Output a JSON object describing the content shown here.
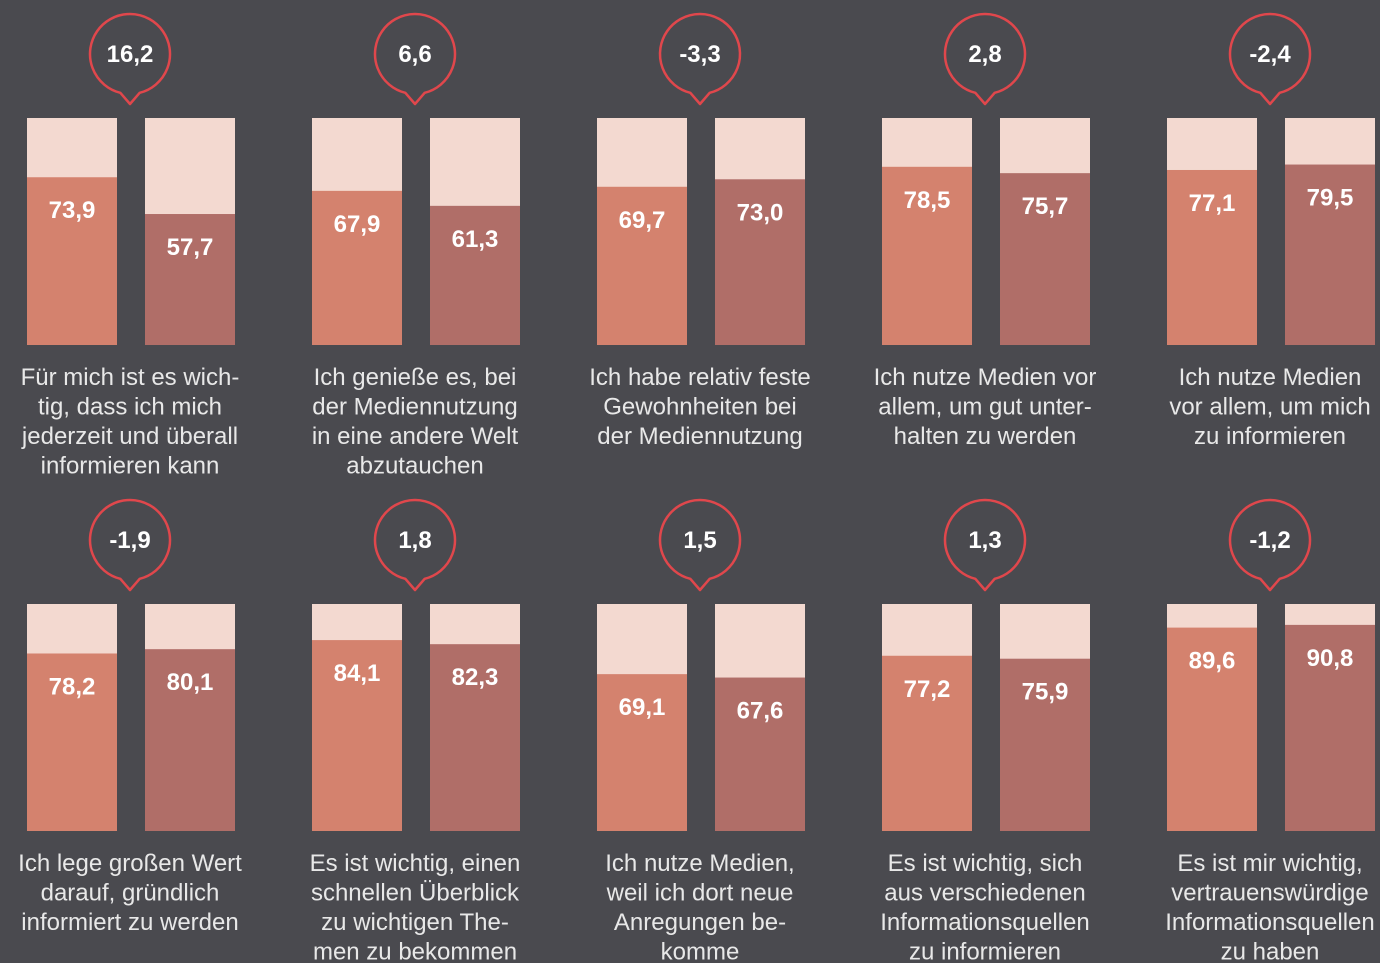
{
  "chart_data": [
    {
      "type": "bar",
      "label": [
        "Für mich ist es wich-",
        "tig, dass ich mich",
        "jederzeit und überall",
        "informieren kann"
      ],
      "values": [
        73.9,
        57.7
      ],
      "value_labels": [
        "73,9",
        "57,7"
      ],
      "difference": 16.2,
      "difference_label": "16,2",
      "colors": [
        "#d4826e",
        "#b06e68"
      ],
      "background_color": "#f3d9d0",
      "ylim": [
        0,
        100
      ]
    },
    {
      "type": "bar",
      "label": [
        "Ich genieße es, bei",
        "der Mediennutzung",
        "in eine andere Welt",
        "abzutauchen"
      ],
      "values": [
        67.9,
        61.3
      ],
      "value_labels": [
        "67,9",
        "61,3"
      ],
      "difference": 6.6,
      "difference_label": "6,6",
      "colors": [
        "#d4826e",
        "#b06e68"
      ],
      "background_color": "#f3d9d0",
      "ylim": [
        0,
        100
      ]
    },
    {
      "type": "bar",
      "label": [
        "Ich habe relativ feste",
        "Gewohnheiten bei",
        "der Mediennutzung"
      ],
      "values": [
        69.7,
        73.0
      ],
      "value_labels": [
        "69,7",
        "73,0"
      ],
      "difference": -3.3,
      "difference_label": "-3,3",
      "colors": [
        "#d4826e",
        "#b06e68"
      ],
      "background_color": "#f3d9d0",
      "ylim": [
        0,
        100
      ]
    },
    {
      "type": "bar",
      "label": [
        "Ich nutze Medien vor",
        "allem, um gut unter-",
        "halten zu werden"
      ],
      "values": [
        78.5,
        75.7
      ],
      "value_labels": [
        "78,5",
        "75,7"
      ],
      "difference": 2.8,
      "difference_label": "2,8",
      "colors": [
        "#d4826e",
        "#b06e68"
      ],
      "background_color": "#f3d9d0",
      "ylim": [
        0,
        100
      ]
    },
    {
      "type": "bar",
      "label": [
        "Ich nutze Medien",
        "vor allem, um mich",
        "zu informieren"
      ],
      "values": [
        77.1,
        79.5
      ],
      "value_labels": [
        "77,1",
        "79,5"
      ],
      "difference": -2.4,
      "difference_label": "-2,4",
      "colors": [
        "#d4826e",
        "#b06e68"
      ],
      "background_color": "#f3d9d0",
      "ylim": [
        0,
        100
      ]
    },
    {
      "type": "bar",
      "label": [
        "Ich lege großen Wert",
        "darauf, gründlich",
        "informiert zu werden"
      ],
      "values": [
        78.2,
        80.1
      ],
      "value_labels": [
        "78,2",
        "80,1"
      ],
      "difference": -1.9,
      "difference_label": "-1,9",
      "colors": [
        "#d4826e",
        "#b06e68"
      ],
      "background_color": "#f3d9d0",
      "ylim": [
        0,
        100
      ]
    },
    {
      "type": "bar",
      "label": [
        "Es ist wichtig, einen",
        "schnellen Überblick",
        "zu wichtigen The-",
        "men zu bekommen"
      ],
      "values": [
        84.1,
        82.3
      ],
      "value_labels": [
        "84,1",
        "82,3"
      ],
      "difference": 1.8,
      "difference_label": "1,8",
      "colors": [
        "#d4826e",
        "#b06e68"
      ],
      "background_color": "#f3d9d0",
      "ylim": [
        0,
        100
      ]
    },
    {
      "type": "bar",
      "label": [
        "Ich nutze Medien,",
        "weil ich dort neue",
        "Anregungen be-",
        "komme"
      ],
      "values": [
        69.1,
        67.6
      ],
      "value_labels": [
        "69,1",
        "67,6"
      ],
      "difference": 1.5,
      "difference_label": "1,5",
      "colors": [
        "#d4826e",
        "#b06e68"
      ],
      "background_color": "#f3d9d0",
      "ylim": [
        0,
        100
      ]
    },
    {
      "type": "bar",
      "label": [
        "Es ist wichtig, sich",
        "aus verschiedenen",
        "Informationsquellen",
        "zu informieren"
      ],
      "values": [
        77.2,
        75.9
      ],
      "value_labels": [
        "77,2",
        "75,9"
      ],
      "difference": 1.3,
      "difference_label": "1,3",
      "colors": [
        "#d4826e",
        "#b06e68"
      ],
      "background_color": "#f3d9d0",
      "ylim": [
        0,
        100
      ]
    },
    {
      "type": "bar",
      "label": [
        "Es ist mir wichtig,",
        "vertrauenswürdige",
        "Informationsquellen",
        "zu haben"
      ],
      "values": [
        89.6,
        90.8
      ],
      "value_labels": [
        "89,6",
        "90,8"
      ],
      "difference": -1.2,
      "difference_label": "-1,2",
      "colors": [
        "#d4826e",
        "#b06e68"
      ],
      "background_color": "#f3d9d0",
      "ylim": [
        0,
        100
      ]
    }
  ]
}
